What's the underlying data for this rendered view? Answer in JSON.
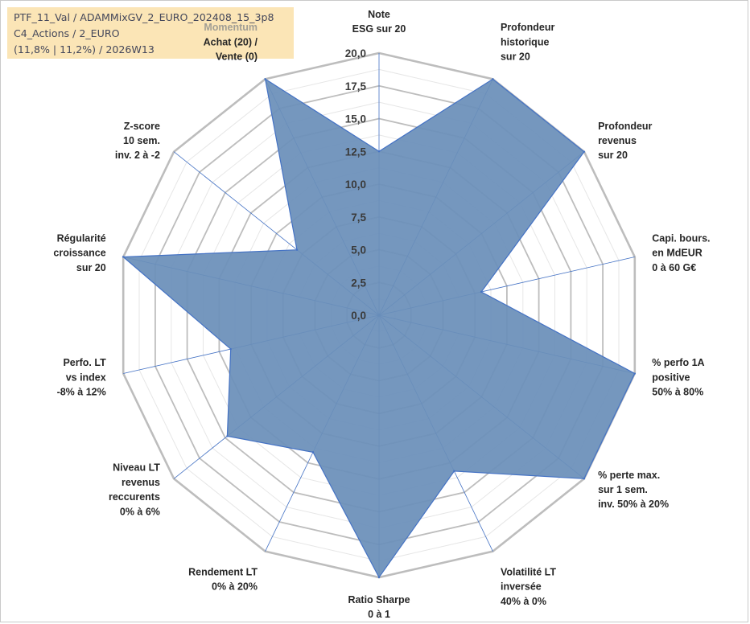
{
  "header": {
    "line1": "PTF_11_Val / ADAMMixGV_2_EURO_202408_15_3p8",
    "line2": "C4_Actions / 2_EURO",
    "line3": "(11,8% | 11,2%) / 2026W13"
  },
  "colors": {
    "fill": "#6b8fb9",
    "stroke": "#4472c4",
    "grid": "#bdbdbd",
    "header_bg": "#fbe5b6"
  },
  "chart_data": {
    "type": "radar",
    "rmin": 0,
    "rmax": 20,
    "tick_labels": [
      "0,0",
      "2,5",
      "5,0",
      "7,5",
      "10,0",
      "12,5",
      "15,0",
      "17,5",
      "20,0"
    ],
    "axes": [
      {
        "lines": [
          "Note",
          "ESG sur 20"
        ],
        "value": 12.5
      },
      {
        "lines": [
          "Profondeur",
          "historique",
          "sur 20"
        ],
        "value": 20
      },
      {
        "lines": [
          "Profondeur",
          "revenus",
          "sur 20"
        ],
        "value": 20
      },
      {
        "lines": [
          "Capi. bours.",
          "en MdEUR",
          "0 à 60 G€"
        ],
        "value": 8
      },
      {
        "lines": [
          "% perfo 1A",
          "positive",
          "50% à 80%"
        ],
        "value": 20
      },
      {
        "lines": [
          "% perte max.",
          "sur 1 sem.",
          "inv. 50% à 20%"
        ],
        "value": 20
      },
      {
        "lines": [
          "Volatilité LT",
          "inversée",
          "40% à 0%"
        ],
        "value": 13.2
      },
      {
        "lines": [
          "Ratio Sharpe",
          "0 à 1"
        ],
        "value": 20
      },
      {
        "lines": [
          "Rendement LT",
          "0% à 20%"
        ],
        "value": 11.6
      },
      {
        "lines": [
          "Niveau LT",
          "revenus",
          "reccurents",
          "0% à 6%"
        ],
        "value": 14.8
      },
      {
        "lines": [
          "Perfo. LT",
          "vs index",
          "-8% à 12%"
        ],
        "value": 11.6
      },
      {
        "lines": [
          "Régularité",
          "croissance",
          "sur 20"
        ],
        "value": 20
      },
      {
        "lines": [
          "Z-score",
          "10 sem.",
          "inv. 2 à -2"
        ],
        "value": 8
      },
      {
        "lines": [
          "Momentum",
          "Achat (20) /",
          "Vente (0)"
        ],
        "value": 20
      }
    ]
  }
}
